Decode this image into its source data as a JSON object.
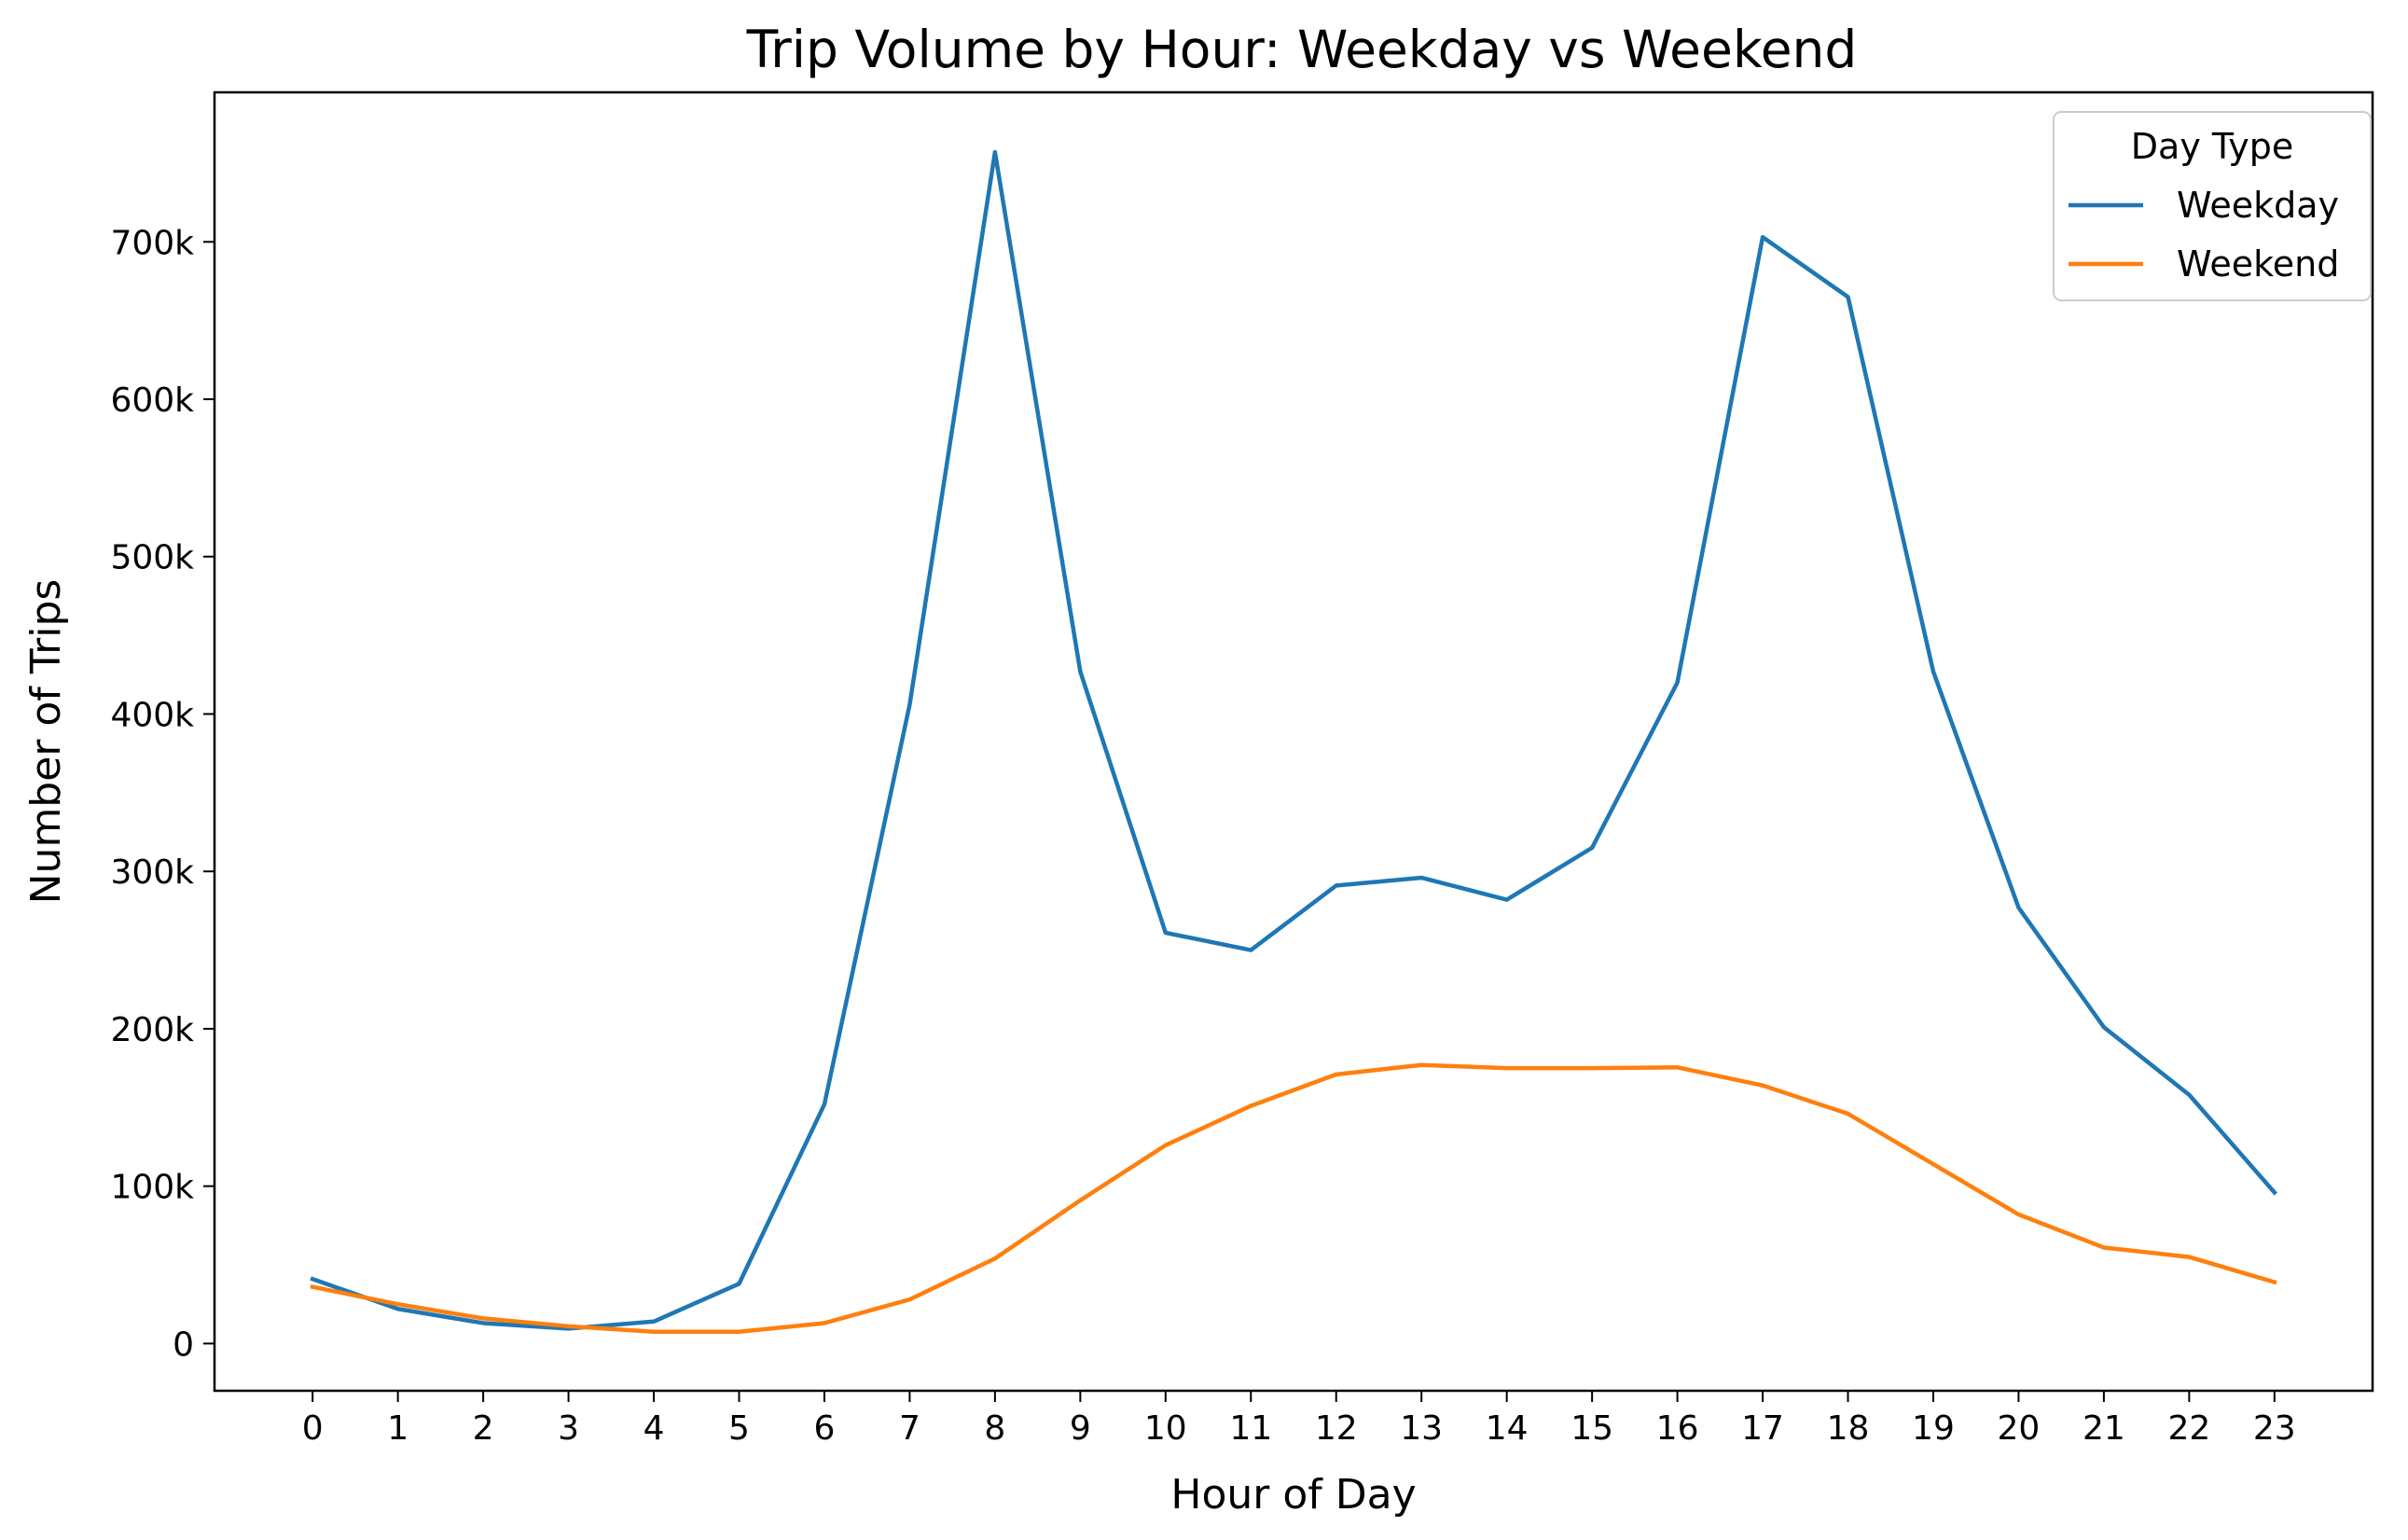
{
  "chart_data": {
    "type": "line",
    "title": "Trip Volume by Hour: Weekday vs Weekend",
    "xlabel": "Hour of Day",
    "ylabel": "Number of Trips",
    "x": [
      0,
      1,
      2,
      3,
      4,
      5,
      6,
      7,
      8,
      9,
      10,
      11,
      12,
      13,
      14,
      15,
      16,
      17,
      18,
      19,
      20,
      21,
      22,
      23
    ],
    "x_tick_labels": [
      "0",
      "1",
      "2",
      "3",
      "4",
      "5",
      "6",
      "7",
      "8",
      "9",
      "10",
      "11",
      "12",
      "13",
      "14",
      "15",
      "16",
      "17",
      "18",
      "19",
      "20",
      "21",
      "22",
      "23"
    ],
    "ylim": [
      -30000,
      795000
    ],
    "y_ticks": [
      0,
      100000,
      200000,
      300000,
      400000,
      500000,
      600000,
      700000
    ],
    "y_tick_labels": [
      "0",
      "100k",
      "200k",
      "300k",
      "400k",
      "500k",
      "600k",
      "700k"
    ],
    "grid": false,
    "legend": {
      "title": "Day Type",
      "placement": "top-right"
    },
    "series": [
      {
        "name": "Weekday",
        "color": "#1f77b4",
        "values": [
          41000,
          22000,
          13000,
          9500,
          14000,
          38000,
          152000,
          406000,
          757000,
          427000,
          261000,
          250000,
          291000,
          296000,
          282000,
          315000,
          420000,
          703000,
          665000,
          427000,
          277000,
          201000,
          158000,
          96000
        ]
      },
      {
        "name": "Weekend",
        "color": "#ff7f0e",
        "values": [
          36000,
          25000,
          16000,
          11000,
          7500,
          7500,
          13000,
          28000,
          54000,
          91000,
          126000,
          151000,
          171000,
          177000,
          175000,
          175000,
          175500,
          164000,
          146000,
          114000,
          82000,
          61000,
          55000,
          39000
        ]
      }
    ]
  }
}
